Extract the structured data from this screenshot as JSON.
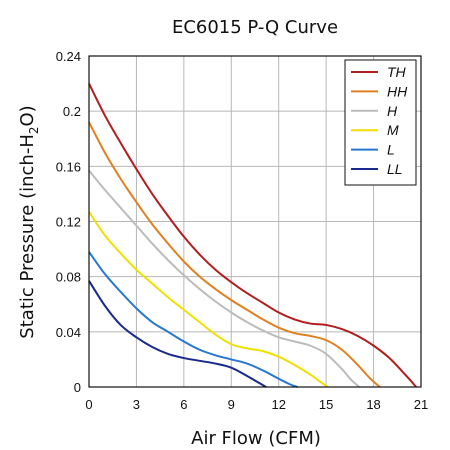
{
  "chart_data": {
    "type": "line",
    "title": "EC6015 P-Q Curve",
    "xlabel": "Air Flow (CFM)",
    "ylabel": "Static Pressure (inch-H2O)",
    "ylabel_parts": {
      "before": "Static Pressure (inch-H",
      "sub": "2",
      "after": "O)"
    },
    "xlim": [
      0,
      21
    ],
    "ylim": [
      0,
      0.24
    ],
    "x_ticks": [
      "0",
      "3",
      "6",
      "9",
      "12",
      "15",
      "18",
      "21"
    ],
    "y_ticks": [
      "0",
      "0.04",
      "0.08",
      "0.12",
      "0.16",
      "0.2",
      "0.24"
    ],
    "grid": true,
    "legend_position": "top-right",
    "series": [
      {
        "name": "TH",
        "color": "#b01e1e",
        "x": [
          0,
          1,
          2,
          3,
          4,
          5,
          6,
          7,
          8,
          9,
          10,
          11,
          12,
          13,
          14,
          15,
          16,
          17,
          18,
          19,
          20,
          20.7
        ],
        "y": [
          0.22,
          0.197,
          0.177,
          0.158,
          0.14,
          0.124,
          0.109,
          0.096,
          0.085,
          0.076,
          0.068,
          0.061,
          0.054,
          0.049,
          0.046,
          0.045,
          0.042,
          0.037,
          0.03,
          0.021,
          0.009,
          0
        ]
      },
      {
        "name": "HH",
        "color": "#e08020",
        "x": [
          0,
          1,
          2,
          3,
          4,
          5,
          6,
          7,
          8,
          9,
          10,
          11,
          12,
          13,
          14,
          15,
          16,
          17,
          17.8,
          18.4
        ],
        "y": [
          0.192,
          0.17,
          0.151,
          0.134,
          0.118,
          0.104,
          0.091,
          0.08,
          0.071,
          0.063,
          0.056,
          0.049,
          0.043,
          0.039,
          0.037,
          0.034,
          0.027,
          0.016,
          0.006,
          0
        ]
      },
      {
        "name": "H",
        "color": "#bcbcbc",
        "x": [
          0,
          1,
          2,
          3,
          4,
          5,
          6,
          7,
          8,
          9,
          10,
          11,
          12,
          13,
          14,
          15,
          16,
          16.6,
          17.1
        ],
        "y": [
          0.157,
          0.143,
          0.13,
          0.117,
          0.104,
          0.092,
          0.081,
          0.071,
          0.062,
          0.054,
          0.047,
          0.041,
          0.036,
          0.033,
          0.03,
          0.024,
          0.013,
          0.005,
          0
        ]
      },
      {
        "name": "M",
        "color": "#f0e000",
        "x": [
          0,
          1,
          2,
          3,
          4,
          5,
          6,
          7,
          8,
          9,
          10,
          11,
          12,
          13,
          14,
          14.6,
          15.1
        ],
        "y": [
          0.127,
          0.11,
          0.097,
          0.085,
          0.075,
          0.065,
          0.056,
          0.047,
          0.038,
          0.031,
          0.028,
          0.026,
          0.022,
          0.016,
          0.009,
          0.004,
          0
        ]
      },
      {
        "name": "L",
        "color": "#2878d0",
        "x": [
          0,
          1,
          2,
          3,
          4,
          5,
          6,
          7,
          8,
          9,
          10,
          11,
          12,
          12.7,
          13.2
        ],
        "y": [
          0.098,
          0.082,
          0.069,
          0.057,
          0.047,
          0.04,
          0.033,
          0.027,
          0.023,
          0.02,
          0.017,
          0.012,
          0.006,
          0.002,
          0
        ]
      },
      {
        "name": "LL",
        "color": "#1a2a8c",
        "x": [
          0,
          1,
          2,
          3,
          4,
          5,
          6,
          7,
          8,
          9,
          10,
          10.6,
          11.2
        ],
        "y": [
          0.077,
          0.059,
          0.045,
          0.036,
          0.029,
          0.024,
          0.021,
          0.019,
          0.017,
          0.014,
          0.008,
          0.004,
          0
        ]
      }
    ]
  }
}
